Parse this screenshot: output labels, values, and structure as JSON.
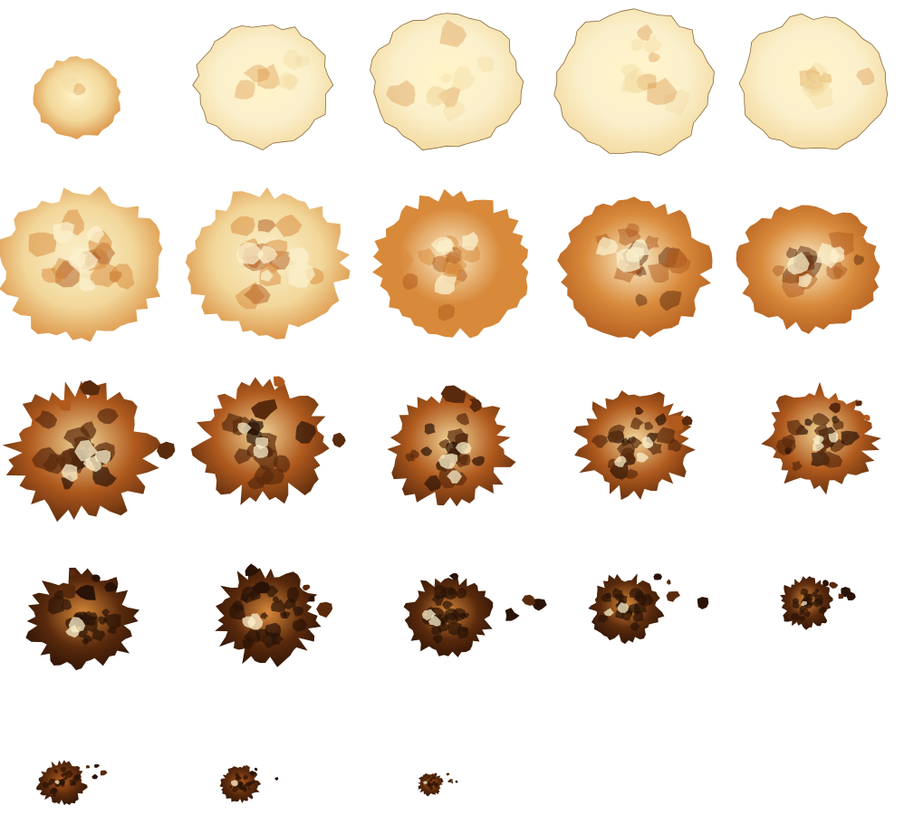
{
  "sprite_sheet": {
    "columns": 5,
    "frame_count": 23,
    "frames": [
      {
        "index": 1,
        "phase": "flash"
      },
      {
        "index": 2,
        "phase": "expand"
      },
      {
        "index": 3,
        "phase": "expand"
      },
      {
        "index": 4,
        "phase": "expand"
      },
      {
        "index": 5,
        "phase": "expand"
      },
      {
        "index": 6,
        "phase": "fireball"
      },
      {
        "index": 7,
        "phase": "fireball"
      },
      {
        "index": 8,
        "phase": "fireball"
      },
      {
        "index": 9,
        "phase": "fireball"
      },
      {
        "index": 10,
        "phase": "fireball"
      },
      {
        "index": 11,
        "phase": "burn"
      },
      {
        "index": 12,
        "phase": "burn"
      },
      {
        "index": 13,
        "phase": "burn"
      },
      {
        "index": 14,
        "phase": "burn"
      },
      {
        "index": 15,
        "phase": "burn"
      },
      {
        "index": 16,
        "phase": "smoke"
      },
      {
        "index": 17,
        "phase": "smoke"
      },
      {
        "index": 18,
        "phase": "smoke"
      },
      {
        "index": 19,
        "phase": "smoke"
      },
      {
        "index": 20,
        "phase": "smoke"
      },
      {
        "index": 21,
        "phase": "embers"
      },
      {
        "index": 22,
        "phase": "embers"
      },
      {
        "index": 23,
        "phase": "embers"
      }
    ]
  },
  "colors": {
    "background": "#ffffff",
    "flash": "#fff4c8",
    "flame_pale": "#fbf0cc",
    "flame_light": "#f2d79a",
    "flame_orange": "#d8893a",
    "flame_deep": "#b05a1e",
    "char": "#5a2a0c",
    "soot": "#2a1206"
  },
  "icons": {
    "frame": "explosion-frame-icon"
  }
}
